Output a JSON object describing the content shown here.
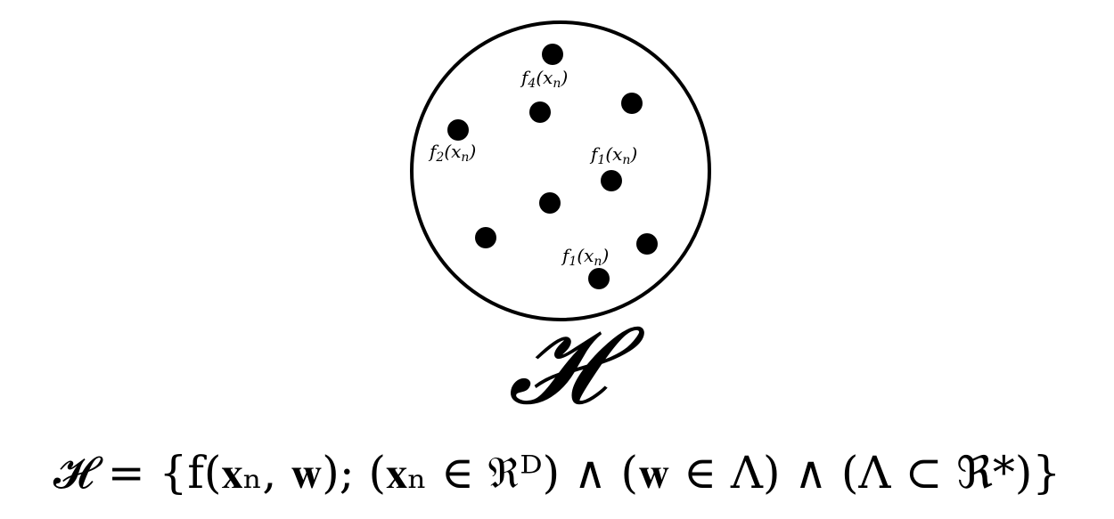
{
  "set_symbol": "𝓗",
  "point_labels": [
    {
      "f": "f",
      "index": "4",
      "arg": "(x",
      "arg_sub": "n",
      "close": ")"
    },
    {
      "f": "f",
      "index": "2",
      "arg": "(x",
      "arg_sub": "n",
      "close": ")"
    },
    {
      "f": "f",
      "index": "1",
      "arg": "(x",
      "arg_sub": "n",
      "close": ")"
    },
    {
      "f": "f",
      "index": "1",
      "arg": "(x",
      "arg_sub": "n",
      "close": ")"
    }
  ],
  "formula": {
    "text": "𝓗 = {f(𝐱ₙ, 𝐰); (𝐱ₙ ∈ ℜᴰ) ∧ (𝐰 ∈ Λ) ∧ (Λ ⊂ ℜ*)}"
  }
}
